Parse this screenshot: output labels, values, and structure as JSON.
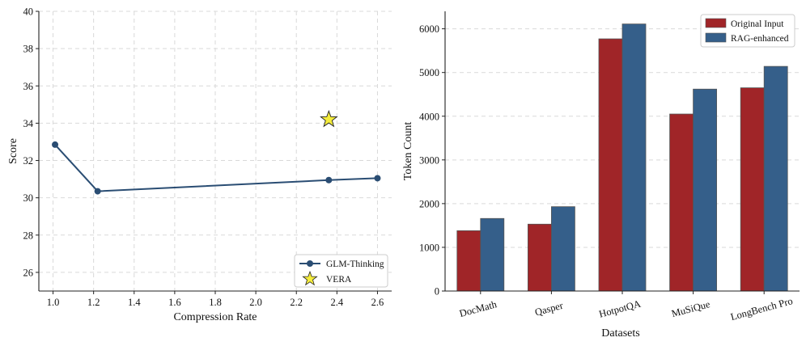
{
  "chart_data": [
    {
      "type": "line",
      "xlabel": "Compression Rate",
      "ylabel": "Score",
      "xlim": [
        0.93,
        2.67
      ],
      "ylim": [
        25,
        40
      ],
      "xticks": [
        "1.0",
        "1.2",
        "1.4",
        "1.6",
        "1.8",
        "2.0",
        "2.2",
        "2.4",
        "2.6"
      ],
      "yticks": [
        "26",
        "28",
        "30",
        "32",
        "34",
        "36",
        "38",
        "40"
      ],
      "grid": true,
      "legend_position": "bottom-right",
      "series": [
        {
          "name": "GLM-Thinking",
          "marker": "circle",
          "color": "#2a4d73",
          "x": [
            1.01,
            1.22,
            2.36,
            2.6
          ],
          "y": [
            32.85,
            30.35,
            30.95,
            31.05
          ]
        },
        {
          "name": "VERA",
          "marker": "star",
          "color": "#f4ec3c",
          "x": [
            2.36
          ],
          "y": [
            34.2
          ]
        }
      ]
    },
    {
      "type": "bar",
      "xlabel": "Datasets",
      "ylabel": "Token Count",
      "ylim": [
        0,
        6400
      ],
      "yticks": [
        "0",
        "1000",
        "2000",
        "3000",
        "4000",
        "5000",
        "6000"
      ],
      "grid": true,
      "legend_position": "top-right",
      "categories": [
        "DocMath",
        "Qasper",
        "HotpotQA",
        "MuSiQue",
        "LongBench Pro"
      ],
      "series": [
        {
          "name": "Original Input",
          "color": "#a02528",
          "values": [
            1380,
            1530,
            5770,
            4050,
            4650
          ]
        },
        {
          "name": "RAG-enhanced",
          "color": "#355f8a",
          "values": [
            1660,
            1930,
            6110,
            4620,
            5140
          ]
        }
      ]
    }
  ]
}
